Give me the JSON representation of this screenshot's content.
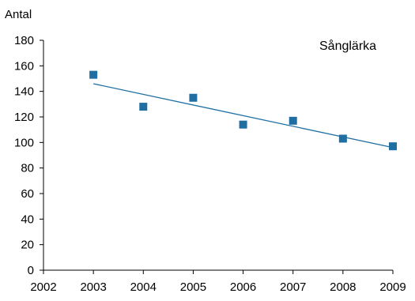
{
  "chart_data": {
    "type": "scatter",
    "ylabel": "Antal",
    "xlim": [
      2002,
      2009
    ],
    "ylim": [
      0,
      180
    ],
    "x_ticks": [
      2002,
      2003,
      2004,
      2005,
      2006,
      2007,
      2008,
      2009
    ],
    "y_ticks": [
      0,
      20,
      40,
      60,
      80,
      100,
      120,
      140,
      160,
      180
    ],
    "grid": false,
    "series": [
      {
        "name": "Sånglärka",
        "color": "#1F6FA3",
        "marker": "square",
        "x": [
          2003,
          2004,
          2005,
          2006,
          2007,
          2008,
          2009
        ],
        "y": [
          153,
          128,
          135,
          114,
          117,
          103,
          97
        ]
      }
    ],
    "trendline": {
      "type": "linear",
      "color": "#1F6FA3",
      "x": [
        2003,
        2009
      ],
      "y": [
        146,
        96
      ]
    }
  }
}
